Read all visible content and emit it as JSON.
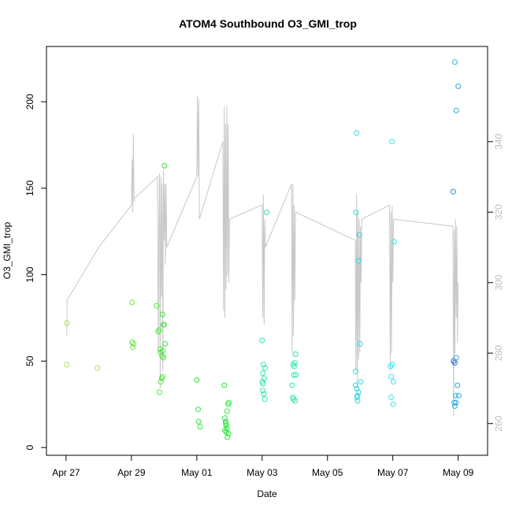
{
  "chart_data": {
    "type": "scatter",
    "title": "ATOM4 Southbound O3_GMI_trop",
    "xlabel": "Date",
    "ylabel": "O3_GMI_trop",
    "x_ticks": [
      "Apr 27",
      "Apr 29",
      "May 01",
      "May 03",
      "May 05",
      "May 07",
      "May 09"
    ],
    "xlim": [
      -0.6,
      12.9
    ],
    "ylim": [
      -4.5,
      232
    ],
    "y_ticks": [
      0,
      50,
      100,
      150,
      200
    ],
    "y2lim": [
      251,
      367
    ],
    "y2_ticks": [
      260,
      280,
      300,
      320,
      340
    ],
    "grid": false,
    "points": [
      {
        "x": 0.02,
        "y": 72,
        "color": "#a4e34a"
      },
      {
        "x": 0.02,
        "y": 48,
        "color": "#a4e34a"
      },
      {
        "x": 0.96,
        "y": 46,
        "color": "#a4e34a"
      },
      {
        "x": 2.02,
        "y": 84,
        "color": "#66e83a"
      },
      {
        "x": 2.02,
        "y": 61,
        "color": "#66e83a"
      },
      {
        "x": 2.06,
        "y": 60,
        "color": "#66e83a"
      },
      {
        "x": 2.04,
        "y": 58,
        "color": "#66e83a"
      },
      {
        "x": 2.77,
        "y": 82,
        "color": "#4ee63a"
      },
      {
        "x": 2.82,
        "y": 67,
        "color": "#4ee63a"
      },
      {
        "x": 2.85,
        "y": 68,
        "color": "#4ee63a"
      },
      {
        "x": 2.88,
        "y": 57,
        "color": "#4ee63a"
      },
      {
        "x": 2.9,
        "y": 55,
        "color": "#4ee63a"
      },
      {
        "x": 2.94,
        "y": 53,
        "color": "#4ee63a"
      },
      {
        "x": 2.86,
        "y": 32,
        "color": "#4ee63a"
      },
      {
        "x": 2.9,
        "y": 38,
        "color": "#4ee63a"
      },
      {
        "x": 2.93,
        "y": 40,
        "color": "#4ee63a"
      },
      {
        "x": 2.95,
        "y": 41,
        "color": "#4ee63a"
      },
      {
        "x": 2.95,
        "y": 77,
        "color": "#3ee63c"
      },
      {
        "x": 2.98,
        "y": 71,
        "color": "#3ee63c"
      },
      {
        "x": 3.0,
        "y": 71,
        "color": "#3ee63c"
      },
      {
        "x": 3.01,
        "y": 163,
        "color": "#3ee63c"
      },
      {
        "x": 3.03,
        "y": 60,
        "color": "#3ee63c"
      },
      {
        "x": 2.96,
        "y": 56,
        "color": "#3ee63c"
      },
      {
        "x": 2.98,
        "y": 52,
        "color": "#3ee63c"
      },
      {
        "x": 4.0,
        "y": 39,
        "color": "#2de63c"
      },
      {
        "x": 4.04,
        "y": 22,
        "color": "#2de63c"
      },
      {
        "x": 4.06,
        "y": 15,
        "color": "#2de63c"
      },
      {
        "x": 4.1,
        "y": 12,
        "color": "#2de63c"
      },
      {
        "x": 4.84,
        "y": 36,
        "color": "#2de63c"
      },
      {
        "x": 4.86,
        "y": 17,
        "color": "#2de63c"
      },
      {
        "x": 4.88,
        "y": 15,
        "color": "#2de63c"
      },
      {
        "x": 4.9,
        "y": 13,
        "color": "#2de63c"
      },
      {
        "x": 4.92,
        "y": 11,
        "color": "#2de63c"
      },
      {
        "x": 4.86,
        "y": 10,
        "color": "#2de63c"
      },
      {
        "x": 4.9,
        "y": 9,
        "color": "#2de63c"
      },
      {
        "x": 4.94,
        "y": 6,
        "color": "#2de63c"
      },
      {
        "x": 4.97,
        "y": 8,
        "color": "#2de63c"
      },
      {
        "x": 4.93,
        "y": 21,
        "color": "#2de63c"
      },
      {
        "x": 4.96,
        "y": 25,
        "color": "#2de63c"
      },
      {
        "x": 4.98,
        "y": 26,
        "color": "#2de63c"
      },
      {
        "x": 4.89,
        "y": 14,
        "color": "#2de63c"
      },
      {
        "x": 6.0,
        "y": 62,
        "color": "#2be6a8"
      },
      {
        "x": 6.02,
        "y": 43,
        "color": "#2be6a8"
      },
      {
        "x": 6.04,
        "y": 48,
        "color": "#2be6a8"
      },
      {
        "x": 6.09,
        "y": 46,
        "color": "#2be6a8"
      },
      {
        "x": 6.0,
        "y": 38,
        "color": "#2be6a8"
      },
      {
        "x": 6.03,
        "y": 37,
        "color": "#2be6a8"
      },
      {
        "x": 6.06,
        "y": 40,
        "color": "#2be6a8"
      },
      {
        "x": 6.02,
        "y": 33,
        "color": "#2be6a8"
      },
      {
        "x": 6.05,
        "y": 31,
        "color": "#2be6a8"
      },
      {
        "x": 6.08,
        "y": 28,
        "color": "#2be6a8"
      },
      {
        "x": 6.14,
        "y": 136,
        "color": "#2be6a8"
      },
      {
        "x": 6.95,
        "y": 48,
        "color": "#2be6ad"
      },
      {
        "x": 6.98,
        "y": 47,
        "color": "#2be6ad"
      },
      {
        "x": 7.0,
        "y": 49,
        "color": "#2be6ad"
      },
      {
        "x": 7.02,
        "y": 54,
        "color": "#2be6ad"
      },
      {
        "x": 6.97,
        "y": 42,
        "color": "#2be6ad"
      },
      {
        "x": 7.03,
        "y": 42,
        "color": "#2be6ad"
      },
      {
        "x": 6.92,
        "y": 36,
        "color": "#2be6ad"
      },
      {
        "x": 6.94,
        "y": 29,
        "color": "#2be6ad"
      },
      {
        "x": 6.96,
        "y": 28,
        "color": "#2be6ad"
      },
      {
        "x": 7.01,
        "y": 27,
        "color": "#2be6ad"
      },
      {
        "x": 8.89,
        "y": 182,
        "color": "#2ed8e6"
      },
      {
        "x": 8.87,
        "y": 136,
        "color": "#2ed8e6"
      },
      {
        "x": 8.98,
        "y": 123,
        "color": "#2ed8e6"
      },
      {
        "x": 8.95,
        "y": 108,
        "color": "#2ed8e6"
      },
      {
        "x": 9.0,
        "y": 60,
        "color": "#2ed8e6"
      },
      {
        "x": 8.86,
        "y": 44,
        "color": "#2ed8e6"
      },
      {
        "x": 8.86,
        "y": 36,
        "color": "#2ed8e6"
      },
      {
        "x": 8.9,
        "y": 34,
        "color": "#2ed8e6"
      },
      {
        "x": 8.95,
        "y": 32,
        "color": "#2ed8e6"
      },
      {
        "x": 8.92,
        "y": 30,
        "color": "#2ed8e6"
      },
      {
        "x": 8.9,
        "y": 29,
        "color": "#2ed8e6"
      },
      {
        "x": 8.92,
        "y": 27,
        "color": "#2ed8e6"
      },
      {
        "x": 9.02,
        "y": 38,
        "color": "#2ed8e6"
      },
      {
        "x": 9.97,
        "y": 177,
        "color": "#2ee6e6"
      },
      {
        "x": 10.04,
        "y": 119,
        "color": "#2ee6e6"
      },
      {
        "x": 9.93,
        "y": 47,
        "color": "#2ee6e6"
      },
      {
        "x": 9.98,
        "y": 48,
        "color": "#2ee6e6"
      },
      {
        "x": 9.95,
        "y": 41,
        "color": "#2ee6e6"
      },
      {
        "x": 10.02,
        "y": 38,
        "color": "#2ee6e6"
      },
      {
        "x": 9.95,
        "y": 29,
        "color": "#2ee6e6"
      },
      {
        "x": 10.01,
        "y": 25,
        "color": "#2ee6e6"
      },
      {
        "x": 11.9,
        "y": 223,
        "color": "#2ea8e6"
      },
      {
        "x": 12.0,
        "y": 209,
        "color": "#2ea8e6"
      },
      {
        "x": 11.94,
        "y": 195,
        "color": "#2ea8e6"
      },
      {
        "x": 11.85,
        "y": 148,
        "color": "#1e88e0"
      },
      {
        "x": 11.86,
        "y": 50,
        "color": "#1e5fd0"
      },
      {
        "x": 11.9,
        "y": 49,
        "color": "#1e78d8"
      },
      {
        "x": 11.94,
        "y": 52,
        "color": "#2ea0e6"
      },
      {
        "x": 11.98,
        "y": 36,
        "color": "#2ea8e6"
      },
      {
        "x": 11.92,
        "y": 30,
        "color": "#2ea8e6"
      },
      {
        "x": 12.02,
        "y": 30,
        "color": "#2ea8e6"
      },
      {
        "x": 11.88,
        "y": 26,
        "color": "#2ea8e6"
      },
      {
        "x": 11.9,
        "y": 24,
        "color": "#2ea8e6"
      },
      {
        "x": 11.93,
        "y": 26,
        "color": "#2ea8e6"
      }
    ],
    "line_series": {
      "color": "#c8c8c8",
      "axis": "right",
      "points": [
        [
          0.02,
          285
        ],
        [
          0.03,
          290
        ],
        [
          0.03,
          295
        ],
        [
          1.0,
          310
        ],
        [
          2.0,
          322
        ],
        [
          2.02,
          335
        ],
        [
          2.04,
          320
        ],
        [
          2.06,
          342
        ],
        [
          2.08,
          323
        ],
        [
          2.1,
          324
        ],
        [
          2.8,
          330
        ],
        [
          2.82,
          280
        ],
        [
          2.84,
          312
        ],
        [
          2.86,
          331
        ],
        [
          2.88,
          270
        ],
        [
          2.9,
          330
        ],
        [
          2.92,
          296
        ],
        [
          2.94,
          328
        ],
        [
          2.96,
          275
        ],
        [
          2.98,
          332
        ],
        [
          3.0,
          312
        ],
        [
          3.02,
          328
        ],
        [
          3.04,
          305
        ],
        [
          3.06,
          328
        ],
        [
          3.08,
          310
        ],
        [
          4.0,
          330
        ],
        [
          4.02,
          353
        ],
        [
          4.04,
          330
        ],
        [
          4.06,
          352
        ],
        [
          4.08,
          318
        ],
        [
          4.8,
          340
        ],
        [
          4.82,
          292
        ],
        [
          4.84,
          350
        ],
        [
          4.86,
          290
        ],
        [
          4.88,
          345
        ],
        [
          4.9,
          298
        ],
        [
          4.92,
          350
        ],
        [
          4.94,
          302
        ],
        [
          4.96,
          345
        ],
        [
          4.98,
          300
        ],
        [
          5.0,
          318
        ],
        [
          6.0,
          322
        ],
        [
          6.02,
          290
        ],
        [
          6.04,
          325
        ],
        [
          6.06,
          288
        ],
        [
          6.08,
          318
        ],
        [
          6.1,
          310
        ],
        [
          6.9,
          328
        ],
        [
          6.92,
          280
        ],
        [
          6.94,
          328
        ],
        [
          6.96,
          285
        ],
        [
          6.98,
          322
        ],
        [
          7.0,
          295
        ],
        [
          7.02,
          320
        ],
        [
          8.85,
          312
        ],
        [
          8.87,
          275
        ],
        [
          8.89,
          325
        ],
        [
          8.91,
          270
        ],
        [
          8.93,
          320
        ],
        [
          8.95,
          278
        ],
        [
          8.97,
          318
        ],
        [
          8.99,
          280
        ],
        [
          9.01,
          316
        ],
        [
          9.03,
          300
        ],
        [
          9.05,
          318
        ],
        [
          9.9,
          322
        ],
        [
          9.92,
          275
        ],
        [
          9.94,
          320
        ],
        [
          9.96,
          280
        ],
        [
          9.98,
          322
        ],
        [
          10.0,
          300
        ],
        [
          10.02,
          318
        ],
        [
          11.84,
          316
        ],
        [
          11.86,
          262
        ],
        [
          11.88,
          315
        ],
        [
          11.9,
          280
        ],
        [
          11.92,
          318
        ],
        [
          11.94,
          290
        ],
        [
          11.96,
          316
        ],
        [
          11.98,
          283
        ],
        [
          12.0,
          300
        ]
      ]
    }
  }
}
